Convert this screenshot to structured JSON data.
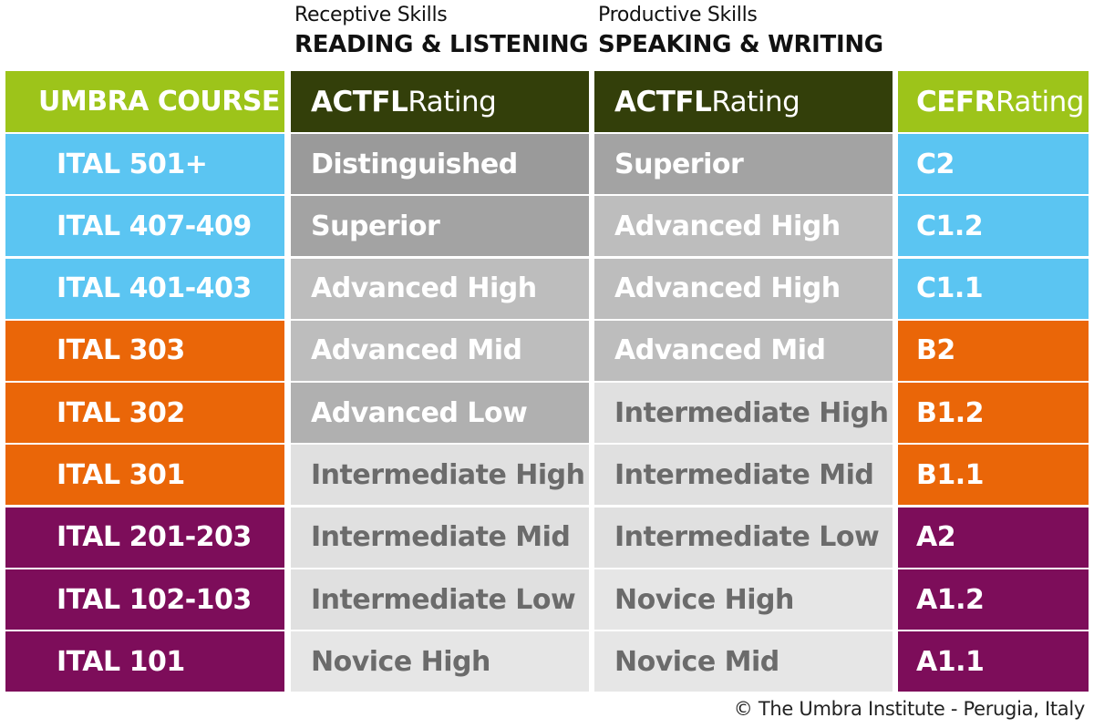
{
  "groups": {
    "receptive": {
      "subtitle": "Receptive Skills",
      "title": "READING & LISTENING"
    },
    "productive": {
      "subtitle": "Productive Skills",
      "title": "SPEAKING & WRITING"
    }
  },
  "headers": {
    "course": "UMBRA COURSE",
    "receptive_bold": "ACTFL",
    "receptive_light": " Rating",
    "productive_bold": "ACTFL",
    "productive_light": " Rating",
    "cefr_bold": "CEFR",
    "cefr_light": " Rating"
  },
  "header_colors": {
    "course": "#9dc41a",
    "actfl": "#333f0a",
    "cefr": "#9dc41a"
  },
  "rows": [
    {
      "course": "ITAL 501+",
      "receptive": "Distinguished",
      "productive": "Superior",
      "cefr": "C2"
    },
    {
      "course": "ITAL 407-409",
      "receptive": "Superior",
      "productive": "Advanced High",
      "cefr": "C1.2"
    },
    {
      "course": "ITAL 401-403",
      "receptive": "Advanced High",
      "productive": "Advanced High",
      "cefr": "C1.1"
    },
    {
      "course": "ITAL 303",
      "receptive": "Advanced Mid",
      "productive": "Advanced Mid",
      "cefr": "B2"
    },
    {
      "course": "ITAL 302",
      "receptive": "Advanced Low",
      "productive": "Intermediate High",
      "cefr": "B1.2"
    },
    {
      "course": "ITAL 301",
      "receptive": "Intermediate High",
      "productive": "Intermediate Mid",
      "cefr": "B1.1"
    },
    {
      "course": "ITAL 201-203",
      "receptive": "Intermediate Mid",
      "productive": "Intermediate Low",
      "cefr": "A2"
    },
    {
      "course": "ITAL 102-103",
      "receptive": "Intermediate Low",
      "productive": "Novice High",
      "cefr": "A1.2"
    },
    {
      "course": "ITAL 101",
      "receptive": "Novice High",
      "productive": "Novice Mid",
      "cefr": "A1.1"
    }
  ],
  "level_colors": {
    "C": "#5bc5f2",
    "B": "#ea6608",
    "A": "#7d0d5a"
  },
  "actfl_colors": {
    "Distinguished": "#9a9a9a",
    "Superior": "#a3a3a3",
    "Advanced High": "#bdbdbd",
    "Advanced Mid": "#bdbdbd",
    "Advanced Low": "#b0b0b0",
    "Intermediate High": "#e0e0e0",
    "Intermediate Mid": "#e0e0e0",
    "Intermediate Low": "#e0e0e0",
    "Novice High": "#e6e6e6",
    "Novice Mid": "#e6e6e6"
  },
  "footer": "© The Umbra Institute - Perugia, Italy"
}
